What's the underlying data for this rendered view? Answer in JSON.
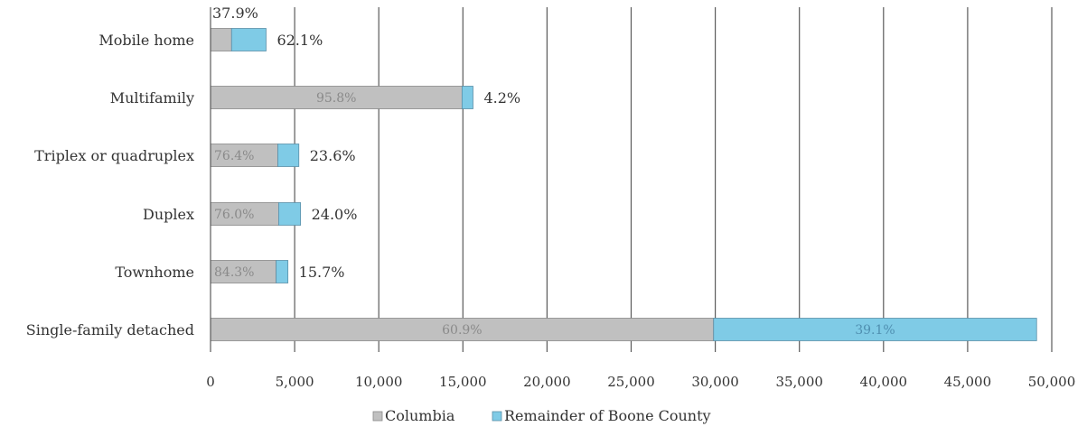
{
  "chart_data": {
    "type": "bar",
    "orientation": "horizontal",
    "stacked": true,
    "categories": [
      "Mobile home",
      "Multifamily",
      "Triplex or quadruplex",
      "Duplex",
      "Townhome",
      "Single-family detached"
    ],
    "series": [
      {
        "name": "Columbia",
        "color": "#c0c0c0",
        "values": [
          1250,
          14950,
          4000,
          4050,
          3900,
          29900
        ],
        "percent_labels": [
          "37.9%",
          "95.8%",
          "76.4%",
          "76.0%",
          "84.3%",
          "60.9%"
        ]
      },
      {
        "name": "Remainder of Boone County",
        "color": "#7fcbe6",
        "values": [
          2050,
          650,
          1250,
          1300,
          700,
          19200
        ],
        "percent_labels": [
          "62.1%",
          "4.2%",
          "23.6%",
          "24.0%",
          "15.7%",
          "39.1%"
        ]
      }
    ],
    "xlim": [
      0,
      50000
    ],
    "xticks": [
      0,
      5000,
      10000,
      15000,
      20000,
      25000,
      30000,
      35000,
      40000,
      45000,
      50000
    ],
    "xtick_labels": [
      "0",
      "5,000",
      "10,000",
      "15,000",
      "20,000",
      "25,000",
      "30,000",
      "35,000",
      "40,000",
      "45,000",
      "50,000"
    ],
    "grid": "vertical",
    "legend_position": "bottom"
  }
}
